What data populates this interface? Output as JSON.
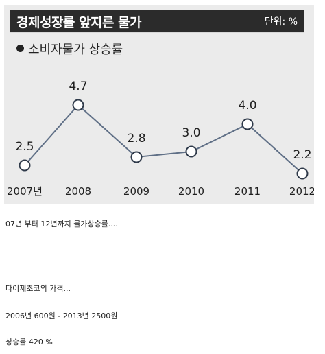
{
  "chart": {
    "title": "경제성장률 앞지른 물가",
    "unit": "단위: %",
    "subtitle": "소비자물가 상승률"
  },
  "chart_data": {
    "type": "line",
    "title": "경제성장률 앞지른 물가",
    "subtitle": "소비자물가 상승률",
    "unit": "단위: %",
    "categories": [
      "2007년",
      "2008",
      "2009",
      "2010",
      "2011",
      "2012"
    ],
    "series": [
      {
        "name": "소비자물가 상승률",
        "values": [
          2.5,
          4.7,
          2.8,
          3.0,
          4.0,
          2.2
        ]
      }
    ],
    "value_labels": [
      "2.5",
      "4.7",
      "2.8",
      "3.0",
      "4.0",
      "2.2"
    ],
    "grid": false,
    "colors": {
      "line": "#5f6f86",
      "marker_fill": "#ffffff",
      "header_bg": "#2b2b2b",
      "background": "#ebebeb"
    }
  },
  "text": {
    "line1": "07년 부터 12년까지 물가상승률....",
    "line2": "다이제초코의 가격...",
    "line3": "2006년 600원  -  2013년 2500원",
    "line4": "상승률 420 %"
  }
}
